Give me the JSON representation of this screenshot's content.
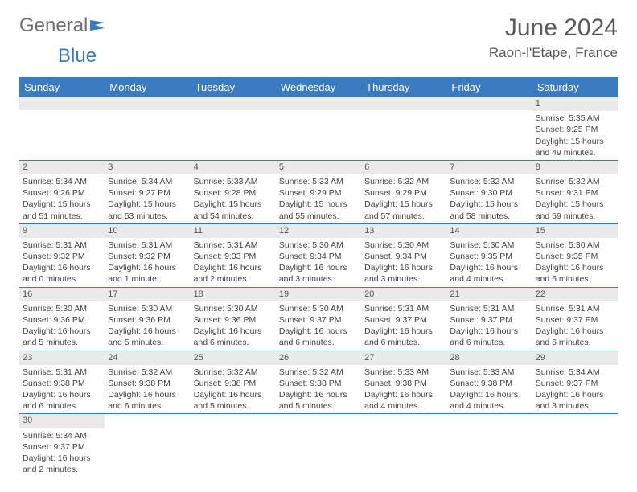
{
  "logo": {
    "general": "General",
    "blue": "Blue"
  },
  "title": "June 2024",
  "location": "Raon-l'Etape, France",
  "colors": {
    "header_bg": "#3a7ac0",
    "header_text": "#ffffff",
    "daynum_bg": "#eaeaea",
    "cell_border": "#3a7ac0",
    "body_text": "#444444",
    "title_text": "#5a5a5a",
    "logo_general": "#707070",
    "logo_blue": "#3a7ac0"
  },
  "weekdays": [
    "Sunday",
    "Monday",
    "Tuesday",
    "Wednesday",
    "Thursday",
    "Friday",
    "Saturday"
  ],
  "weeks": [
    [
      null,
      null,
      null,
      null,
      null,
      null,
      {
        "n": "1",
        "sr": "Sunrise: 5:35 AM",
        "ss": "Sunset: 9:25 PM",
        "d1": "Daylight: 15 hours",
        "d2": "and 49 minutes."
      }
    ],
    [
      {
        "n": "2",
        "sr": "Sunrise: 5:34 AM",
        "ss": "Sunset: 9:26 PM",
        "d1": "Daylight: 15 hours",
        "d2": "and 51 minutes."
      },
      {
        "n": "3",
        "sr": "Sunrise: 5:34 AM",
        "ss": "Sunset: 9:27 PM",
        "d1": "Daylight: 15 hours",
        "d2": "and 53 minutes."
      },
      {
        "n": "4",
        "sr": "Sunrise: 5:33 AM",
        "ss": "Sunset: 9:28 PM",
        "d1": "Daylight: 15 hours",
        "d2": "and 54 minutes."
      },
      {
        "n": "5",
        "sr": "Sunrise: 5:33 AM",
        "ss": "Sunset: 9:29 PM",
        "d1": "Daylight: 15 hours",
        "d2": "and 55 minutes."
      },
      {
        "n": "6",
        "sr": "Sunrise: 5:32 AM",
        "ss": "Sunset: 9:29 PM",
        "d1": "Daylight: 15 hours",
        "d2": "and 57 minutes."
      },
      {
        "n": "7",
        "sr": "Sunrise: 5:32 AM",
        "ss": "Sunset: 9:30 PM",
        "d1": "Daylight: 15 hours",
        "d2": "and 58 minutes."
      },
      {
        "n": "8",
        "sr": "Sunrise: 5:32 AM",
        "ss": "Sunset: 9:31 PM",
        "d1": "Daylight: 15 hours",
        "d2": "and 59 minutes."
      }
    ],
    [
      {
        "n": "9",
        "sr": "Sunrise: 5:31 AM",
        "ss": "Sunset: 9:32 PM",
        "d1": "Daylight: 16 hours",
        "d2": "and 0 minutes."
      },
      {
        "n": "10",
        "sr": "Sunrise: 5:31 AM",
        "ss": "Sunset: 9:32 PM",
        "d1": "Daylight: 16 hours",
        "d2": "and 1 minute."
      },
      {
        "n": "11",
        "sr": "Sunrise: 5:31 AM",
        "ss": "Sunset: 9:33 PM",
        "d1": "Daylight: 16 hours",
        "d2": "and 2 minutes."
      },
      {
        "n": "12",
        "sr": "Sunrise: 5:30 AM",
        "ss": "Sunset: 9:34 PM",
        "d1": "Daylight: 16 hours",
        "d2": "and 3 minutes."
      },
      {
        "n": "13",
        "sr": "Sunrise: 5:30 AM",
        "ss": "Sunset: 9:34 PM",
        "d1": "Daylight: 16 hours",
        "d2": "and 3 minutes."
      },
      {
        "n": "14",
        "sr": "Sunrise: 5:30 AM",
        "ss": "Sunset: 9:35 PM",
        "d1": "Daylight: 16 hours",
        "d2": "and 4 minutes."
      },
      {
        "n": "15",
        "sr": "Sunrise: 5:30 AM",
        "ss": "Sunset: 9:35 PM",
        "d1": "Daylight: 16 hours",
        "d2": "and 5 minutes."
      }
    ],
    [
      {
        "n": "16",
        "sr": "Sunrise: 5:30 AM",
        "ss": "Sunset: 9:36 PM",
        "d1": "Daylight: 16 hours",
        "d2": "and 5 minutes."
      },
      {
        "n": "17",
        "sr": "Sunrise: 5:30 AM",
        "ss": "Sunset: 9:36 PM",
        "d1": "Daylight: 16 hours",
        "d2": "and 5 minutes."
      },
      {
        "n": "18",
        "sr": "Sunrise: 5:30 AM",
        "ss": "Sunset: 9:36 PM",
        "d1": "Daylight: 16 hours",
        "d2": "and 6 minutes."
      },
      {
        "n": "19",
        "sr": "Sunrise: 5:30 AM",
        "ss": "Sunset: 9:37 PM",
        "d1": "Daylight: 16 hours",
        "d2": "and 6 minutes."
      },
      {
        "n": "20",
        "sr": "Sunrise: 5:31 AM",
        "ss": "Sunset: 9:37 PM",
        "d1": "Daylight: 16 hours",
        "d2": "and 6 minutes."
      },
      {
        "n": "21",
        "sr": "Sunrise: 5:31 AM",
        "ss": "Sunset: 9:37 PM",
        "d1": "Daylight: 16 hours",
        "d2": "and 6 minutes."
      },
      {
        "n": "22",
        "sr": "Sunrise: 5:31 AM",
        "ss": "Sunset: 9:37 PM",
        "d1": "Daylight: 16 hours",
        "d2": "and 6 minutes."
      }
    ],
    [
      {
        "n": "23",
        "sr": "Sunrise: 5:31 AM",
        "ss": "Sunset: 9:38 PM",
        "d1": "Daylight: 16 hours",
        "d2": "and 6 minutes."
      },
      {
        "n": "24",
        "sr": "Sunrise: 5:32 AM",
        "ss": "Sunset: 9:38 PM",
        "d1": "Daylight: 16 hours",
        "d2": "and 6 minutes."
      },
      {
        "n": "25",
        "sr": "Sunrise: 5:32 AM",
        "ss": "Sunset: 9:38 PM",
        "d1": "Daylight: 16 hours",
        "d2": "and 5 minutes."
      },
      {
        "n": "26",
        "sr": "Sunrise: 5:32 AM",
        "ss": "Sunset: 9:38 PM",
        "d1": "Daylight: 16 hours",
        "d2": "and 5 minutes."
      },
      {
        "n": "27",
        "sr": "Sunrise: 5:33 AM",
        "ss": "Sunset: 9:38 PM",
        "d1": "Daylight: 16 hours",
        "d2": "and 4 minutes."
      },
      {
        "n": "28",
        "sr": "Sunrise: 5:33 AM",
        "ss": "Sunset: 9:38 PM",
        "d1": "Daylight: 16 hours",
        "d2": "and 4 minutes."
      },
      {
        "n": "29",
        "sr": "Sunrise: 5:34 AM",
        "ss": "Sunset: 9:37 PM",
        "d1": "Daylight: 16 hours",
        "d2": "and 3 minutes."
      }
    ],
    [
      {
        "n": "30",
        "sr": "Sunrise: 5:34 AM",
        "ss": "Sunset: 9:37 PM",
        "d1": "Daylight: 16 hours",
        "d2": "and 2 minutes."
      },
      null,
      null,
      null,
      null,
      null,
      null
    ]
  ]
}
